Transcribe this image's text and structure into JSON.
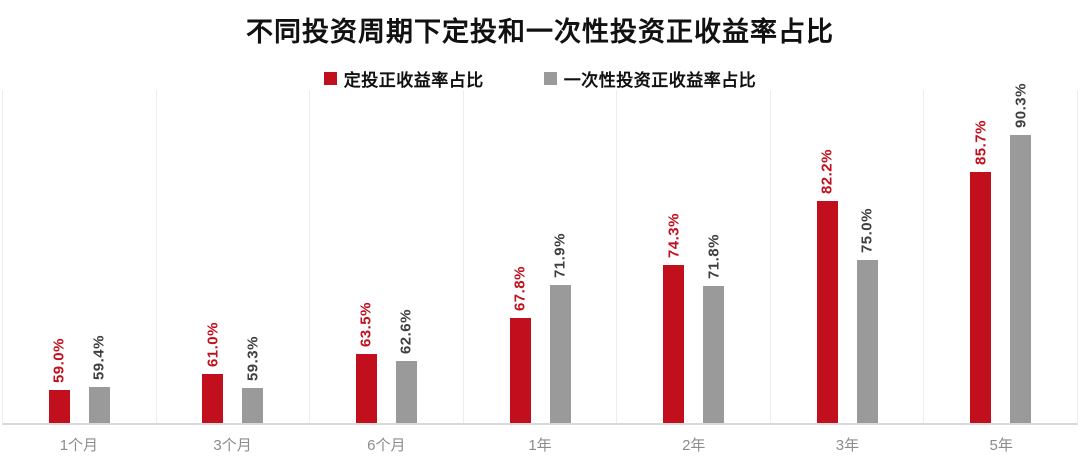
{
  "title": "不同投资周期下定投和一次性投资正收益率占比",
  "legend": [
    {
      "label": "定投正收益率占比",
      "color": "#c20f1e"
    },
    {
      "label": "一次性投资正收益率占比",
      "color": "#9a9a9a"
    }
  ],
  "chart_data": {
    "type": "bar",
    "title": "不同投资周期下定投和一次性投资正收益率占比",
    "categories": [
      "1个月",
      "3个月",
      "6个月",
      "1年",
      "2年",
      "3年",
      "5年"
    ],
    "series": [
      {
        "name": "定投正收益率占比",
        "color": "#c20f1e",
        "label_color": "#c20f1e",
        "values": [
          59.0,
          61.0,
          63.5,
          67.8,
          74.3,
          82.2,
          85.7
        ]
      },
      {
        "name": "一次性投资正收益率占比",
        "color": "#9a9a9a",
        "label_color": "#3f3f3f",
        "values": [
          59.4,
          59.3,
          62.6,
          71.9,
          71.8,
          75.0,
          90.3
        ]
      }
    ],
    "value_suffix": "%",
    "value_label_decimals": 1,
    "ylim": [
      55,
      96
    ],
    "grid": "vertical-category-separators",
    "legend_position": "top",
    "value_labels_rotated_degrees": 90
  }
}
